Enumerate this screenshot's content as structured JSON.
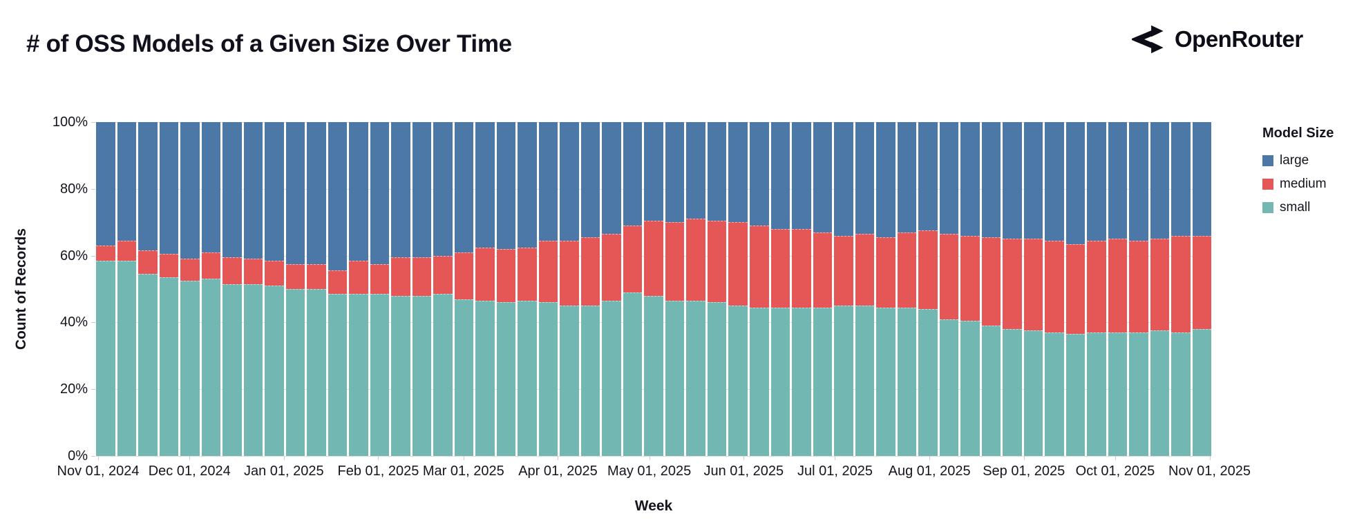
{
  "header": {
    "title": "# of OSS Models of a Given Size Over Time",
    "brand": "OpenRouter"
  },
  "y_axis": {
    "title": "Count of Records",
    "tick_values": [
      0,
      20,
      40,
      60,
      80,
      100
    ],
    "tick_labels": [
      "0%",
      "20%",
      "40%",
      "60%",
      "80%",
      "100%"
    ]
  },
  "x_axis": {
    "title": "Week",
    "ticks": [
      {
        "label": "Nov 01, 2024",
        "day": 0
      },
      {
        "label": "Dec 01, 2024",
        "day": 30
      },
      {
        "label": "Jan 01, 2025",
        "day": 61
      },
      {
        "label": "Feb 01, 2025",
        "day": 92
      },
      {
        "label": "Mar 01, 2025",
        "day": 120
      },
      {
        "label": "Apr 01, 2025",
        "day": 151
      },
      {
        "label": "May 01, 2025",
        "day": 181
      },
      {
        "label": "Jun 01, 2025",
        "day": 212
      },
      {
        "label": "Jul 01, 2025",
        "day": 242
      },
      {
        "label": "Aug 01, 2025",
        "day": 273
      },
      {
        "label": "Sep 01, 2025",
        "day": 304
      },
      {
        "label": "Oct 01, 2025",
        "day": 334
      },
      {
        "label": "Nov 01, 2025",
        "day": 365
      }
    ]
  },
  "legend": {
    "title": "Model Size",
    "items": [
      {
        "label": "large",
        "color": "#4c78a8"
      },
      {
        "label": "medium",
        "color": "#e45756"
      },
      {
        "label": "small",
        "color": "#72b7b2"
      }
    ]
  },
  "colors": {
    "large": "#4c78a8",
    "medium": "#e45756",
    "small": "#72b7b2",
    "grid": "#dddddd",
    "text": "#14151d"
  },
  "chart_data": {
    "type": "bar",
    "stacked": true,
    "normalized_percent": true,
    "title": "# of OSS Models of a Given Size Over Time",
    "xlabel": "Week",
    "ylabel": "Count of Records",
    "ylim": [
      0,
      100
    ],
    "grid": true,
    "legend_position": "right",
    "stack_order_bottom_to_top": [
      "small",
      "medium",
      "large"
    ],
    "categories": [
      "Nov 01, 2024",
      "Nov 08, 2024",
      "Nov 15, 2024",
      "Nov 22, 2024",
      "Nov 29, 2024",
      "Dec 06, 2024",
      "Dec 13, 2024",
      "Dec 20, 2024",
      "Dec 27, 2024",
      "Jan 03, 2025",
      "Jan 10, 2025",
      "Jan 17, 2025",
      "Jan 24, 2025",
      "Jan 31, 2025",
      "Feb 07, 2025",
      "Feb 14, 2025",
      "Feb 21, 2025",
      "Feb 28, 2025",
      "Mar 07, 2025",
      "Mar 14, 2025",
      "Mar 21, 2025",
      "Mar 28, 2025",
      "Apr 04, 2025",
      "Apr 11, 2025",
      "Apr 18, 2025",
      "Apr 25, 2025",
      "May 02, 2025",
      "May 09, 2025",
      "May 16, 2025",
      "May 23, 2025",
      "May 30, 2025",
      "Jun 06, 2025",
      "Jun 13, 2025",
      "Jun 20, 2025",
      "Jun 27, 2025",
      "Jul 04, 2025",
      "Jul 11, 2025",
      "Jul 18, 2025",
      "Jul 25, 2025",
      "Aug 01, 2025",
      "Aug 08, 2025",
      "Aug 15, 2025",
      "Aug 22, 2025",
      "Aug 29, 2025",
      "Sep 05, 2025",
      "Sep 12, 2025",
      "Sep 19, 2025",
      "Sep 26, 2025",
      "Oct 03, 2025",
      "Oct 10, 2025",
      "Oct 17, 2025",
      "Oct 24, 2025",
      "Oct 31, 2025"
    ],
    "series": [
      {
        "name": "small",
        "values": [
          58.5,
          58.5,
          54.5,
          53.5,
          52.5,
          53,
          51.5,
          51.5,
          51,
          50,
          50,
          48.5,
          48.5,
          48.5,
          48,
          48,
          48.5,
          47,
          46.5,
          46,
          46.5,
          46,
          45,
          45,
          46.5,
          49,
          48,
          46.5,
          46.5,
          46,
          45,
          44.5,
          44.5,
          44.5,
          44.5,
          45,
          45,
          44.5,
          44.5,
          44,
          41,
          40.5,
          39,
          38,
          37.5,
          37,
          36.5,
          37,
          37,
          37,
          37.5,
          37,
          38
        ]
      },
      {
        "name": "medium",
        "values": [
          4.5,
          6,
          7,
          7,
          6.5,
          8,
          8,
          7.5,
          7.5,
          7.5,
          7.5,
          7,
          10,
          9,
          11.5,
          11.5,
          11.5,
          14,
          16,
          16,
          16,
          18.5,
          19.5,
          20.5,
          20,
          20,
          22.5,
          23.5,
          24.5,
          24.5,
          25,
          24.5,
          23.5,
          23.5,
          22.5,
          21,
          21.5,
          21,
          22.5,
          23.5,
          25.5,
          25.5,
          26.5,
          27,
          27.5,
          27.5,
          27,
          27.5,
          28,
          27.5,
          27.5,
          29,
          28
        ]
      },
      {
        "name": "large",
        "values": [
          37,
          35.5,
          38.5,
          39.5,
          41,
          39,
          40.5,
          41,
          41.5,
          42.5,
          42.5,
          44.5,
          41.5,
          42.5,
          40.5,
          40.5,
          40,
          39,
          37.5,
          38,
          37.5,
          35.5,
          35.5,
          34.5,
          33.5,
          31,
          29.5,
          30,
          29,
          29.5,
          30,
          31,
          32,
          32,
          33,
          34,
          33.5,
          34.5,
          33,
          32.5,
          33.5,
          34,
          34.5,
          35,
          35,
          35.5,
          36.5,
          35.5,
          35,
          35.5,
          35,
          34,
          34
        ]
      }
    ]
  }
}
